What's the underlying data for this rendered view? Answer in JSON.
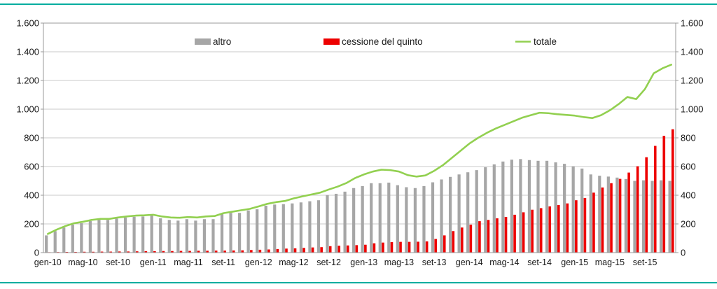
{
  "page": {
    "background": "#ffffff",
    "top_rule_color": "#00ad9f",
    "bottom_rule_color": "#00ad9f"
  },
  "legend": {
    "items": [
      {
        "label": "altro",
        "swatch": "bar",
        "color": "#a6a6a6"
      },
      {
        "label": "cessione del quinto",
        "swatch": "bar",
        "color": "#ed0000"
      },
      {
        "label": "totale",
        "swatch": "line",
        "color": "#92d050"
      }
    ]
  },
  "chart_data": {
    "type": "bar",
    "subtype": "clustered-bars-with-line-overlay",
    "title": "",
    "xlabel": "",
    "ylabel": "",
    "ylim": [
      0,
      1600
    ],
    "ytick_step": 200,
    "ytick_labels": [
      "0",
      "200",
      "400",
      "600",
      "800",
      "1.000",
      "1.200",
      "1.400",
      "1.600"
    ],
    "grid": true,
    "legend_position": "top-inside",
    "axes_text_color": "#1a1a1a",
    "grid_color": "#c8c8c8",
    "frame_color": "#9a9a9a",
    "xtick_every": 4,
    "xtick_labels": [
      "gen-10",
      "mag-10",
      "set-10",
      "gen-11",
      "mag-11",
      "set-11",
      "gen-12",
      "mag-12",
      "set-12",
      "gen-13",
      "mag-13",
      "set-13",
      "gen-14",
      "mag-14",
      "set-14",
      "gen-15",
      "mag-15",
      "set-15"
    ],
    "categories": [
      "gen-10",
      "feb-10",
      "mar-10",
      "apr-10",
      "mag-10",
      "giu-10",
      "lug-10",
      "ago-10",
      "set-10",
      "ott-10",
      "nov-10",
      "dic-10",
      "gen-11",
      "feb-11",
      "mar-11",
      "apr-11",
      "mag-11",
      "giu-11",
      "lug-11",
      "ago-11",
      "set-11",
      "ott-11",
      "nov-11",
      "dic-11",
      "gen-12",
      "feb-12",
      "mar-12",
      "apr-12",
      "mag-12",
      "giu-12",
      "lug-12",
      "ago-12",
      "set-12",
      "ott-12",
      "nov-12",
      "dic-12",
      "gen-13",
      "feb-13",
      "mar-13",
      "apr-13",
      "mag-13",
      "giu-13",
      "lug-13",
      "ago-13",
      "set-13",
      "ott-13",
      "nov-13",
      "dic-13",
      "gen-14",
      "feb-14",
      "mar-14",
      "apr-14",
      "mag-14",
      "giu-14",
      "lug-14",
      "ago-14",
      "set-14",
      "ott-14",
      "nov-14",
      "dic-14",
      "gen-15",
      "feb-15",
      "mar-15",
      "apr-15",
      "mag-15",
      "giu-15",
      "lug-15",
      "ago-15",
      "set-15",
      "ott-15",
      "nov-15",
      "dic-15"
    ],
    "series": [
      {
        "name": "altro",
        "type": "bar",
        "color": "#a6a6a6",
        "values": [
          120,
          150,
          175,
          195,
          205,
          220,
          228,
          228,
          238,
          245,
          250,
          252,
          261,
          239,
          228,
          223,
          233,
          223,
          233,
          233,
          269,
          277,
          277,
          294,
          302,
          327,
          335,
          338,
          343,
          350,
          358,
          365,
          401,
          410,
          425,
          450,
          464,
          484,
          484,
          488,
          470,
          456,
          450,
          464,
          490,
          510,
          528,
          545,
          560,
          575,
          595,
          615,
          635,
          648,
          652,
          645,
          640,
          640,
          629,
          619,
          602,
          586,
          545,
          536,
          530,
          523,
          513,
          500,
          504,
          500,
          504,
          500
        ]
      },
      {
        "name": "cessione del quinto",
        "type": "bar",
        "color": "#ed0000",
        "values": [
          3,
          4,
          5,
          5,
          6,
          6,
          7,
          7,
          8,
          8,
          9,
          10,
          10,
          11,
          11,
          12,
          12,
          13,
          13,
          14,
          14,
          15,
          16,
          18,
          20,
          22,
          25,
          28,
          30,
          33,
          36,
          38,
          45,
          48,
          50,
          52,
          55,
          65,
          70,
          73,
          75,
          75,
          76,
          78,
          95,
          120,
          150,
          175,
          195,
          219,
          228,
          239,
          249,
          264,
          281,
          299,
          310,
          322,
          332,
          343,
          365,
          381,
          418,
          454,
          484,
          514,
          558,
          602,
          665,
          744,
          814,
          860
        ]
      },
      {
        "name": "totale",
        "type": "line",
        "color": "#92d050",
        "values": [
          130,
          160,
          185,
          205,
          215,
          228,
          235,
          235,
          245,
          252,
          258,
          260,
          264,
          252,
          245,
          243,
          248,
          245,
          252,
          255,
          275,
          285,
          295,
          305,
          322,
          340,
          352,
          360,
          378,
          392,
          405,
          418,
          440,
          460,
          485,
          520,
          545,
          565,
          578,
          575,
          565,
          540,
          530,
          538,
          570,
          610,
          660,
          710,
          760,
          800,
          835,
          865,
          890,
          915,
          940,
          958,
          975,
          972,
          965,
          960,
          955,
          945,
          938,
          958,
          992,
          1035,
          1085,
          1070,
          1140,
          1250,
          1285,
          1310
        ]
      }
    ]
  }
}
